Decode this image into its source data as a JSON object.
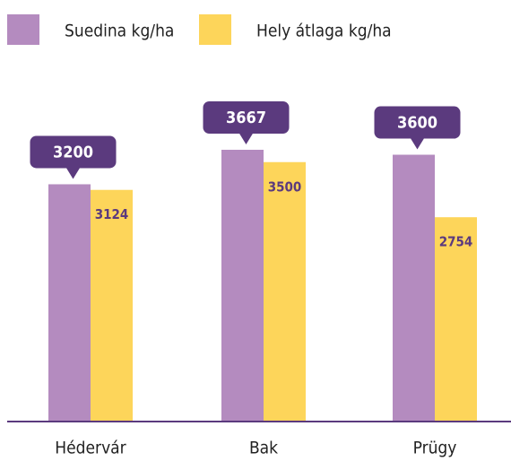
{
  "chart_data": {
    "type": "bar",
    "categories": [
      "Hédervár",
      "Bak",
      "Prügy"
    ],
    "series": [
      {
        "name": "Suedina kg/ha",
        "color": "#b48bbf",
        "values": [
          3200,
          3667,
          3600
        ]
      },
      {
        "name": "Hely átlaga kg/ha",
        "color": "#fdd55a",
        "values": [
          3124,
          3500,
          2754
        ]
      }
    ]
  }
}
